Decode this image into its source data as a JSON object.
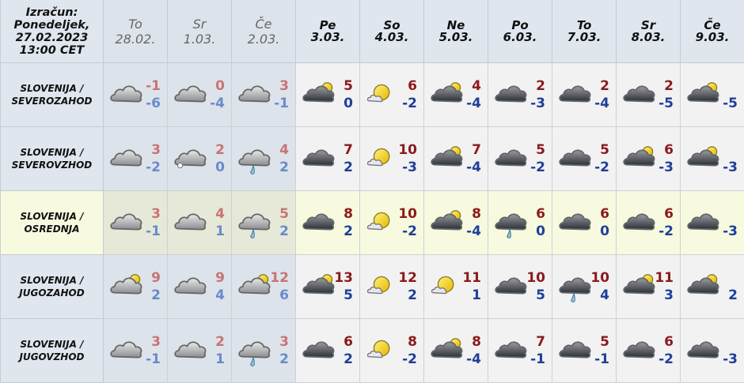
{
  "header": {
    "corner": [
      "Izračun:",
      "Ponedeljek,",
      "27.02.2023",
      "13:00 CET"
    ],
    "days": [
      {
        "day": "To",
        "date": "28.02.",
        "past": true
      },
      {
        "day": "Sr",
        "date": "1.03.",
        "past": true
      },
      {
        "day": "Če",
        "date": "2.03.",
        "past": true
      },
      {
        "day": "Pe",
        "date": "3.03."
      },
      {
        "day": "So",
        "date": "4.03."
      },
      {
        "day": "Ne",
        "date": "5.03."
      },
      {
        "day": "Po",
        "date": "6.03."
      },
      {
        "day": "To",
        "date": "7.03."
      },
      {
        "day": "Sr",
        "date": "8.03."
      },
      {
        "day": "Če",
        "date": "9.03."
      }
    ]
  },
  "colors": {
    "past_max": "#c87474",
    "past_min": "#6a8acb",
    "max": "#8b1a1a",
    "min": "#1f3f99",
    "highlight": "#f7fadf"
  },
  "rows": [
    {
      "region": [
        "SLOVENIJA /",
        "SEVEROZAHOD"
      ],
      "cells": [
        {
          "icon": "cloudy",
          "max": "-1",
          "min": "-6"
        },
        {
          "icon": "cloudy",
          "max": "0",
          "min": "-4"
        },
        {
          "icon": "cloudy",
          "max": "3",
          "min": "-1"
        },
        {
          "icon": "partly-cloudy",
          "max": "5",
          "min": "0"
        },
        {
          "icon": "mostly-sunny",
          "max": "6",
          "min": "-2"
        },
        {
          "icon": "partly-cloudy",
          "max": "4",
          "min": "-4"
        },
        {
          "icon": "cloudy",
          "max": "2",
          "min": "-3"
        },
        {
          "icon": "cloudy",
          "max": "2",
          "min": "-4"
        },
        {
          "icon": "cloudy",
          "max": "2",
          "min": "-5"
        },
        {
          "icon": "partly-cloudy",
          "max": "",
          "min": "-5"
        }
      ]
    },
    {
      "region": [
        "SLOVENIJA /",
        "SEVEROVZHOD"
      ],
      "cells": [
        {
          "icon": "cloudy",
          "max": "3",
          "min": "-2"
        },
        {
          "icon": "cloudy-snow",
          "max": "2",
          "min": "0"
        },
        {
          "icon": "rain",
          "max": "4",
          "min": "2"
        },
        {
          "icon": "cloudy",
          "max": "7",
          "min": "2"
        },
        {
          "icon": "mostly-sunny",
          "max": "10",
          "min": "-3"
        },
        {
          "icon": "partly-cloudy",
          "max": "7",
          "min": "-4"
        },
        {
          "icon": "cloudy",
          "max": "5",
          "min": "-2"
        },
        {
          "icon": "cloudy",
          "max": "5",
          "min": "-2"
        },
        {
          "icon": "partly-cloudy",
          "max": "6",
          "min": "-3"
        },
        {
          "icon": "partly-cloudy",
          "max": "",
          "min": "-3"
        }
      ]
    },
    {
      "region": [
        "SLOVENIJA /",
        "OSREDNJA"
      ],
      "highlight": true,
      "cells": [
        {
          "icon": "cloudy",
          "max": "3",
          "min": "-1"
        },
        {
          "icon": "cloudy",
          "max": "4",
          "min": "1"
        },
        {
          "icon": "rain",
          "max": "5",
          "min": "2"
        },
        {
          "icon": "cloudy",
          "max": "8",
          "min": "2"
        },
        {
          "icon": "mostly-sunny",
          "max": "10",
          "min": "-2"
        },
        {
          "icon": "partly-cloudy",
          "max": "8",
          "min": "-4"
        },
        {
          "icon": "rain",
          "max": "6",
          "min": "0"
        },
        {
          "icon": "cloudy",
          "max": "6",
          "min": "0"
        },
        {
          "icon": "cloudy",
          "max": "6",
          "min": "-2"
        },
        {
          "icon": "cloudy",
          "max": "",
          "min": "-3"
        }
      ]
    },
    {
      "region": [
        "SLOVENIJA /",
        "JUGOZAHOD"
      ],
      "cells": [
        {
          "icon": "partly-cloudy",
          "max": "9",
          "min": "2"
        },
        {
          "icon": "cloudy",
          "max": "9",
          "min": "4"
        },
        {
          "icon": "partly-cloudy",
          "max": "12",
          "min": "6"
        },
        {
          "icon": "partly-cloudy",
          "max": "13",
          "min": "5"
        },
        {
          "icon": "mostly-sunny",
          "max": "12",
          "min": "2"
        },
        {
          "icon": "mostly-sunny",
          "max": "11",
          "min": "1"
        },
        {
          "icon": "cloudy",
          "max": "10",
          "min": "5"
        },
        {
          "icon": "rain",
          "max": "10",
          "min": "4"
        },
        {
          "icon": "partly-cloudy",
          "max": "11",
          "min": "3"
        },
        {
          "icon": "partly-cloudy",
          "max": "",
          "min": "2"
        }
      ]
    },
    {
      "region": [
        "SLOVENIJA /",
        "JUGOVZHOD"
      ],
      "cells": [
        {
          "icon": "cloudy",
          "max": "3",
          "min": "-1"
        },
        {
          "icon": "cloudy",
          "max": "2",
          "min": "1"
        },
        {
          "icon": "rain",
          "max": "3",
          "min": "2"
        },
        {
          "icon": "cloudy",
          "max": "6",
          "min": "2"
        },
        {
          "icon": "mostly-sunny",
          "max": "8",
          "min": "-2"
        },
        {
          "icon": "partly-cloudy",
          "max": "8",
          "min": "-4"
        },
        {
          "icon": "cloudy",
          "max": "7",
          "min": "-1"
        },
        {
          "icon": "cloudy",
          "max": "5",
          "min": "-1"
        },
        {
          "icon": "cloudy",
          "max": "6",
          "min": "-2"
        },
        {
          "icon": "cloudy",
          "max": "",
          "min": "-3"
        }
      ]
    }
  ]
}
